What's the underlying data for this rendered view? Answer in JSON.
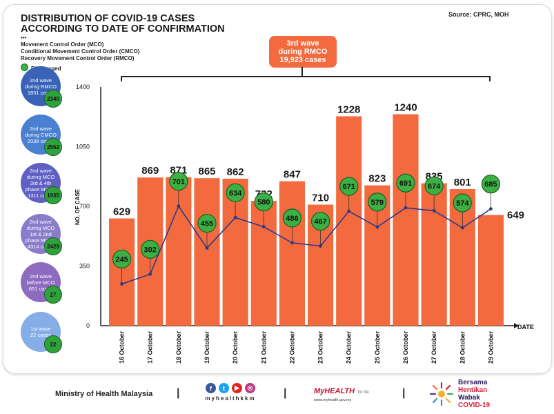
{
  "header": {
    "title_line1": "DISTRIBUTION OF COVID-19 CASES",
    "title_line2": "ACCORDING TO DATE OF CONFIRMATION",
    "source": "Source: CPRC, MOH",
    "legend_mark": "***",
    "legend_items": [
      "Movement Control Order (MCO)",
      "Conditional Movement Control Order (CMCO)",
      "Recovery Movement Control Order (RMCO)"
    ],
    "discharged_label": "Discharged"
  },
  "callout": {
    "line1": "3rd wave",
    "line2": "during RMCO",
    "line3": "19,923 cases"
  },
  "waves": [
    {
      "lines": [
        "2nd wave",
        "during RMCO",
        "1831 cases"
      ],
      "discharged": "2340",
      "color": "#3a63b8"
    },
    {
      "lines": [
        "2nd wave",
        "during CMCO",
        "2038 cases"
      ],
      "discharged": "2562",
      "color": "#4b7fd1"
    },
    {
      "lines": [
        "2nd wave",
        "during MCO",
        "3rd & 4th",
        "phase MCO -",
        "1311 cases"
      ],
      "discharged": "1935",
      "color": "#5f5fc4"
    },
    {
      "lines": [
        "2nd wave",
        "during MCO",
        "1st & 2nd",
        "phase MCO -",
        "4314 cases"
      ],
      "discharged": "2429",
      "color": "#8a7cc9"
    },
    {
      "lines": [
        "2nd wave",
        "before MCO",
        "651 cases"
      ],
      "discharged": "27",
      "color": "#8d6bbf"
    },
    {
      "lines": [
        "1st wave",
        "22 cases"
      ],
      "discharged": "22",
      "color": "#86aee6"
    }
  ],
  "chart_data": {
    "type": "bar",
    "title": "DISTRIBUTION OF COVID-19 CASES ACCORDING TO DATE OF CONFIRMATION",
    "xlabel": "DATE",
    "ylabel": "NO. OF CASE",
    "ylim": [
      0,
      1400
    ],
    "yticks": [
      0,
      350,
      700,
      1050,
      1400
    ],
    "categories": [
      "16 October",
      "17 October",
      "18 October",
      "19 October",
      "20 October",
      "21 October",
      "22 October",
      "23 October",
      "24 October",
      "25 October",
      "26 October",
      "27 October",
      "28 October",
      "29 October"
    ],
    "series": [
      {
        "name": "",
        "type": "bar",
        "color": "#f26a3d",
        "values": [
          629,
          869,
          871,
          865,
          862,
          732,
          847,
          710,
          1228,
          823,
          1240,
          835,
          801,
          649
        ]
      },
      {
        "name": "Discharged",
        "type": "line",
        "color": "#2b3a8c",
        "marker_color": "#3cb043",
        "values": [
          245,
          302,
          701,
          455,
          634,
          580,
          486,
          467,
          671,
          579,
          691,
          674,
          574,
          685
        ]
      }
    ],
    "bracket_label": "3rd wave during RMCO 19,923 cases"
  },
  "footer": {
    "ministry": "Ministry of Health Malaysia",
    "separator": "|",
    "handle": "myhealthkkm",
    "social_icons": [
      {
        "name": "facebook-icon",
        "glyph": "f",
        "color": "#3b5998"
      },
      {
        "name": "twitter-icon",
        "glyph": "t",
        "color": "#1da1f2"
      },
      {
        "name": "youtube-icon",
        "glyph": "▶",
        "color": "#e62117"
      },
      {
        "name": "instagram-icon",
        "glyph": "◎",
        "color": "#c13584"
      }
    ],
    "myhealth": "MyHEALTH",
    "myhealth_sub": "for life",
    "myhealth_url": "www.myhealth.gov.my",
    "bersama_lines": [
      "Bersama",
      "Hentikan",
      "Wabak",
      "COVID-19"
    ]
  }
}
